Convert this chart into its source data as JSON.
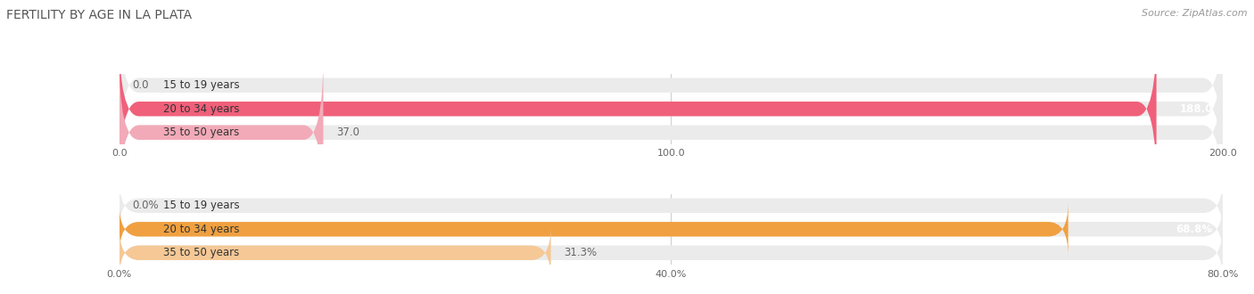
{
  "title": "FERTILITY BY AGE IN LA PLATA",
  "source": "Source: ZipAtlas.com",
  "top_chart": {
    "categories": [
      "15 to 19 years",
      "20 to 34 years",
      "35 to 50 years"
    ],
    "values": [
      0.0,
      188.0,
      37.0
    ],
    "xlim": [
      0,
      200
    ],
    "xticks": [
      0.0,
      100.0,
      200.0
    ],
    "xtick_labels": [
      "0.0",
      "100.0",
      "200.0"
    ],
    "bar_colors": [
      "#f2aab8",
      "#f0607a",
      "#f2aab8"
    ],
    "circle_colors": [
      "#e87090",
      "#d94070",
      "#e87090"
    ],
    "label_val_inside": [
      false,
      true,
      false
    ],
    "label_val_color_inside": "#ffffff",
    "label_val_color_outside": "#666666"
  },
  "bottom_chart": {
    "categories": [
      "15 to 19 years",
      "20 to 34 years",
      "35 to 50 years"
    ],
    "values": [
      0.0,
      68.8,
      31.3
    ],
    "xlim": [
      0,
      80
    ],
    "xticks": [
      0.0,
      40.0,
      80.0
    ],
    "xtick_labels": [
      "0.0%",
      "40.0%",
      "80.0%"
    ],
    "bar_colors": [
      "#f5c896",
      "#f0a040",
      "#f5c896"
    ],
    "circle_colors": [
      "#e09050",
      "#d07820",
      "#e09050"
    ],
    "label_val_inside": [
      false,
      true,
      false
    ],
    "label_val_color_inside": "#ffffff",
    "label_val_color_outside": "#666666"
  },
  "bg_color": "#ffffff",
  "bar_bg_color": "#ebebeb",
  "title_fontsize": 10,
  "source_fontsize": 8,
  "label_fontsize": 8.5,
  "category_fontsize": 8.5,
  "tick_fontsize": 8
}
